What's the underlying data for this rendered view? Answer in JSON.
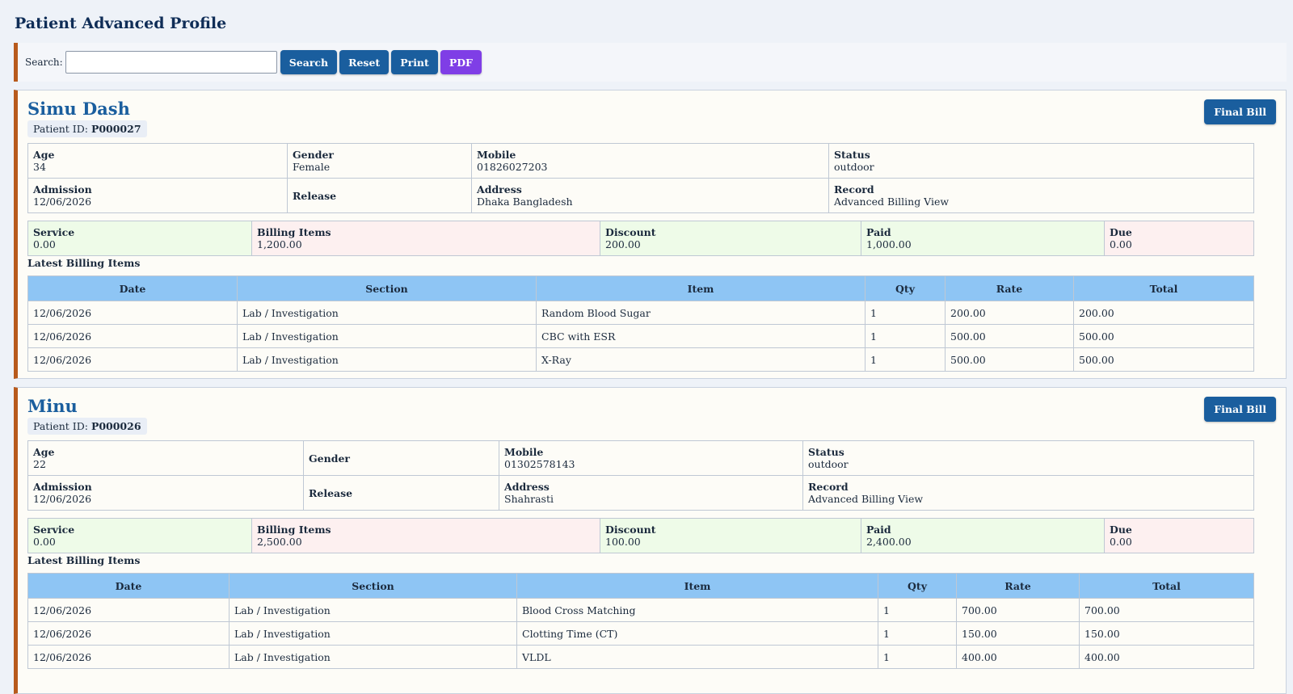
{
  "page": {
    "title": "Patient Advanced Profile"
  },
  "toolbar": {
    "search_label": "Search:",
    "search_value": "",
    "search_placeholder": "",
    "search_btn": "Search",
    "reset_btn": "Reset",
    "print_btn": "Print",
    "pdf_btn": "PDF"
  },
  "colors": {
    "accent": "#1a5e9e",
    "border_accent": "#b85a1c",
    "pdf": "#7f3ee6",
    "table_head": "#8ec5f4"
  },
  "labels": {
    "patient_id": "Patient ID:",
    "final_bill": "Final Bill",
    "age": "Age",
    "gender": "Gender",
    "mobile": "Mobile",
    "status": "Status",
    "admission": "Admission",
    "release": "Release",
    "address": "Address",
    "record": "Record",
    "service": "Service",
    "billing_items": "Billing Items",
    "discount": "Discount",
    "paid": "Paid",
    "due": "Due",
    "latest": "Latest Billing Items",
    "col_date": "Date",
    "col_section": "Section",
    "col_item": "Item",
    "col_qty": "Qty",
    "col_rate": "Rate",
    "col_total": "Total"
  },
  "patients": [
    {
      "name": "Simu Dash",
      "id": "P000027",
      "age": "34",
      "gender": "Female",
      "mobile": "01826027203",
      "status": "outdoor",
      "admission": "12/06/2026",
      "release": "",
      "address": "Dhaka Bangladesh",
      "record": "Advanced Billing View",
      "service": "0.00",
      "billing_items": "1,200.00",
      "discount": "200.00",
      "paid": "1,000.00",
      "due": "0.00",
      "items": [
        {
          "date": "12/06/2026",
          "section": "Lab / Investigation",
          "item": "Random Blood Sugar",
          "qty": "1",
          "rate": "200.00",
          "total": "200.00"
        },
        {
          "date": "12/06/2026",
          "section": "Lab / Investigation",
          "item": "CBC with ESR",
          "qty": "1",
          "rate": "500.00",
          "total": "500.00"
        },
        {
          "date": "12/06/2026",
          "section": "Lab / Investigation",
          "item": "X-Ray",
          "qty": "1",
          "rate": "500.00",
          "total": "500.00"
        }
      ]
    },
    {
      "name": "Minu",
      "id": "P000026",
      "age": "22",
      "gender": "",
      "mobile": "01302578143",
      "status": "outdoor",
      "admission": "12/06/2026",
      "release": "",
      "address": "Shahrasti",
      "record": "Advanced Billing View",
      "service": "0.00",
      "billing_items": "2,500.00",
      "discount": "100.00",
      "paid": "2,400.00",
      "due": "0.00",
      "items": [
        {
          "date": "12/06/2026",
          "section": "Lab / Investigation",
          "item": "Blood Cross Matching",
          "qty": "1",
          "rate": "700.00",
          "total": "700.00"
        },
        {
          "date": "12/06/2026",
          "section": "Lab / Investigation",
          "item": "Clotting Time (CT)",
          "qty": "1",
          "rate": "150.00",
          "total": "150.00"
        },
        {
          "date": "12/06/2026",
          "section": "Lab / Investigation",
          "item": "VLDL",
          "qty": "1",
          "rate": "400.00",
          "total": "400.00"
        }
      ]
    }
  ]
}
